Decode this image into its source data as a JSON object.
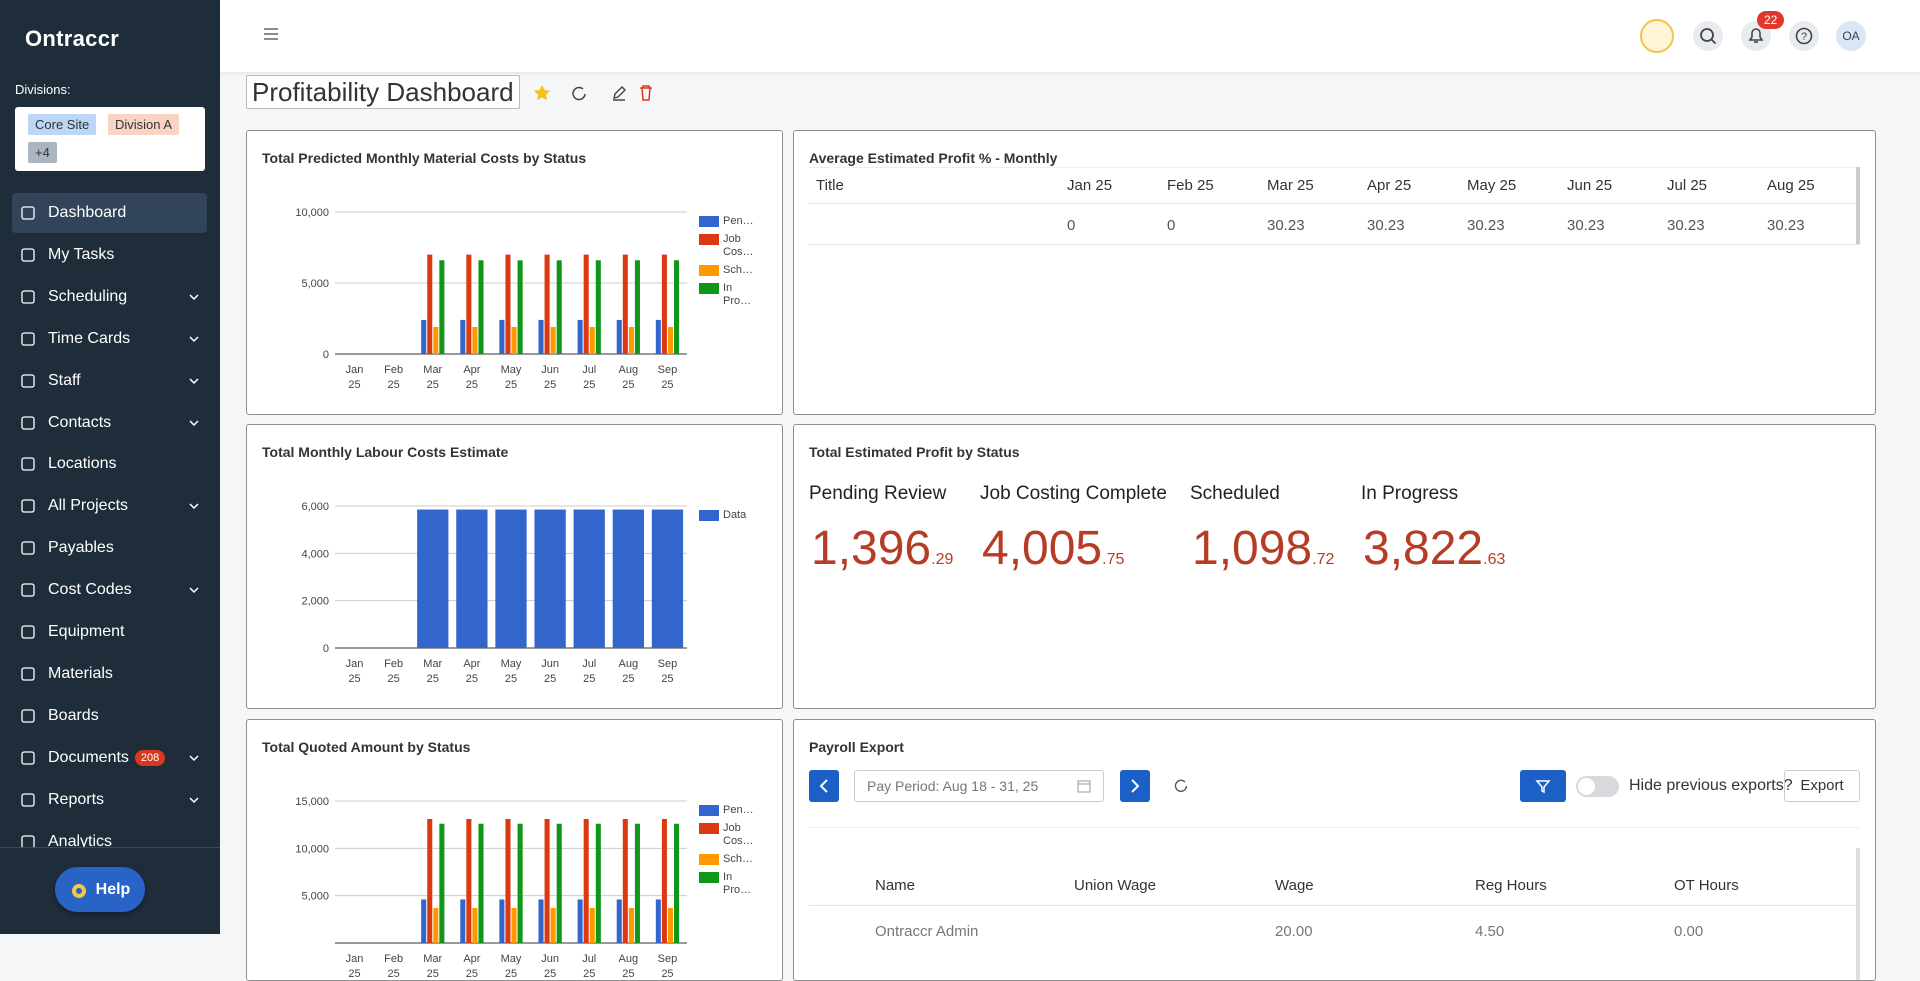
{
  "sidebar": {
    "logo": "Ontraccr",
    "divisions_label": "Divisions:",
    "divisions": [
      "Core Site",
      "Division A",
      "+4"
    ],
    "nav": [
      {
        "label": "Dashboard",
        "active": true
      },
      {
        "label": "My Tasks"
      },
      {
        "label": "Scheduling",
        "submenu": true
      },
      {
        "label": "Time Cards",
        "submenu": true
      },
      {
        "label": "Staff",
        "submenu": true
      },
      {
        "label": "Contacts",
        "submenu": true
      },
      {
        "label": "Locations"
      },
      {
        "label": "All Projects",
        "submenu": true
      },
      {
        "label": "Payables"
      },
      {
        "label": "Cost Codes",
        "submenu": true
      },
      {
        "label": "Equipment"
      },
      {
        "label": "Materials"
      },
      {
        "label": "Boards"
      },
      {
        "label": "Documents",
        "badge": 208,
        "submenu": true
      },
      {
        "label": "Reports",
        "submenu": true
      },
      {
        "label": "Analytics"
      }
    ],
    "help": "Help"
  },
  "header": {
    "notifications": 22,
    "avatar": "OA"
  },
  "dashboard_title": "Profitability Dashboard",
  "chart_data": [
    {
      "type": "bar",
      "title": "Total Predicted Monthly Material Costs by Status",
      "categories": [
        "Jan 25",
        "Feb 25",
        "Mar 25",
        "Apr 25",
        "May 25",
        "Jun 25",
        "Jul 25",
        "Aug 25",
        "Sep 25"
      ],
      "series": [
        {
          "name": "Pen…",
          "color": "#3366cc",
          "values": [
            0,
            0,
            2400,
            2400,
            2400,
            2400,
            2400,
            2400,
            2400
          ]
        },
        {
          "name": "Job Cos…",
          "color": "#dc3912",
          "values": [
            0,
            0,
            7000,
            7000,
            7000,
            7000,
            7000,
            7000,
            7000
          ]
        },
        {
          "name": "Sch…",
          "color": "#ff9900",
          "values": [
            0,
            0,
            1900,
            1900,
            1900,
            1900,
            1900,
            1900,
            1900
          ]
        },
        {
          "name": "In Pro…",
          "color": "#109618",
          "values": [
            0,
            0,
            6600,
            6600,
            6600,
            6600,
            6600,
            6600,
            6600
          ]
        }
      ],
      "ylim": [
        0,
        10000
      ],
      "yticks": [
        0,
        {
          "value": 5000,
          "label": "5,000"
        },
        {
          "value": 10000,
          "label": "10,000"
        }
      ],
      "grid": true,
      "legend": "right"
    },
    {
      "type": "bar",
      "title": "Total Monthly Labour Costs Estimate",
      "categories": [
        "Jan 25",
        "Feb 25",
        "Mar 25",
        "Apr 25",
        "May 25",
        "Jun 25",
        "Jul 25",
        "Aug 25",
        "Sep 25"
      ],
      "series": [
        {
          "name": "Data",
          "color": "#3366cc",
          "values": [
            0,
            0,
            5850,
            5850,
            5850,
            5850,
            5850,
            5850,
            5850
          ]
        }
      ],
      "ylim": [
        0,
        6000
      ],
      "yticks": [
        0,
        {
          "value": 2000,
          "label": "2,000"
        },
        {
          "value": 4000,
          "label": "4,000"
        },
        {
          "value": 6000,
          "label": "6,000"
        }
      ],
      "grid": true,
      "legend": "right"
    },
    {
      "type": "bar",
      "title": "Total Quoted Amount by Status",
      "categories": [
        "Jan 25",
        "Feb 25",
        "Mar 25",
        "Apr 25",
        "May 25",
        "Jun 25",
        "Jul 25",
        "Aug 25",
        "Sep 25"
      ],
      "series": [
        {
          "name": "Pen…",
          "color": "#3366cc",
          "values": [
            0,
            0,
            4600,
            4600,
            4600,
            4600,
            4600,
            4600,
            4600
          ]
        },
        {
          "name": "Job Cos…",
          "color": "#dc3912",
          "values": [
            0,
            0,
            13100,
            13100,
            13100,
            13100,
            13100,
            13100,
            13100
          ]
        },
        {
          "name": "Sch…",
          "color": "#ff9900",
          "values": [
            0,
            0,
            3700,
            3700,
            3700,
            3700,
            3700,
            3700,
            3700
          ]
        },
        {
          "name": "In Pro…",
          "color": "#109618",
          "values": [
            0,
            0,
            12600,
            12600,
            12600,
            12600,
            12600,
            12600,
            12600
          ]
        }
      ],
      "ylim": [
        0,
        15000
      ],
      "yticks": [
        {
          "value": 5000,
          "label": "5,000"
        },
        {
          "value": 10000,
          "label": "10,000"
        },
        {
          "value": 15000,
          "label": "15,000"
        }
      ],
      "grid": true,
      "legend": "right"
    }
  ],
  "profit_table": {
    "title": "Average Estimated Profit % - Monthly",
    "columns": [
      "Title",
      "Jan 25",
      "Feb 25",
      "Mar 25",
      "Apr 25",
      "May 25",
      "Jun 25",
      "Jul 25",
      "Aug 25"
    ],
    "rows": [
      [
        0,
        0,
        30.23,
        30.23,
        30.23,
        30.23,
        30.23,
        30.23
      ]
    ]
  },
  "profit_by_status": {
    "title": "Total Estimated Profit by Status",
    "items": [
      {
        "label": "Pending Review",
        "whole": "1,396",
        "cents": ".29"
      },
      {
        "label": "Job Costing Complete",
        "whole": "4,005",
        "cents": ".75"
      },
      {
        "label": "Scheduled",
        "whole": "1,098",
        "cents": ".72"
      },
      {
        "label": "In Progress",
        "whole": "3,822",
        "cents": ".63"
      }
    ]
  },
  "payroll": {
    "title": "Payroll Export",
    "pay_period": "Pay Period: Aug 18 - 31, 25",
    "toggle_label": "Hide previous exports?",
    "export": "Export",
    "columns": [
      "Name",
      "Union Wage",
      "Wage",
      "Reg Hours",
      "OT Hours"
    ],
    "rows": [
      {
        "name": "Ontraccr Admin",
        "wage": "20.00",
        "reg_hours": "4.50",
        "ot_hours": "0.00"
      }
    ]
  }
}
